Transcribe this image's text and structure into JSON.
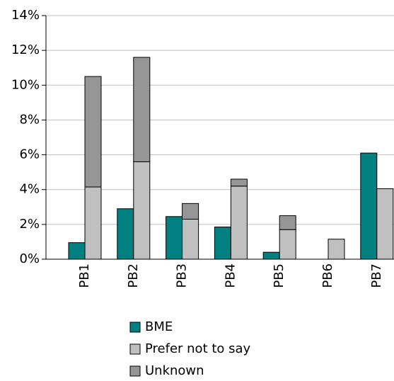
{
  "chart_data": {
    "type": "bar",
    "categories": [
      "PB1",
      "PB2",
      "PB3",
      "PB4",
      "PB5",
      "PB6",
      "PB7"
    ],
    "series": [
      {
        "name": "BME",
        "color": "#008080",
        "values": [
          0.95,
          2.9,
          2.45,
          1.85,
          0.4,
          0,
          6.1
        ]
      },
      {
        "name": "Prefer not to say",
        "color": "#c0c0c0",
        "values": [
          4.15,
          5.6,
          2.3,
          4.2,
          1.7,
          1.15,
          4.05
        ]
      },
      {
        "name": "Unknown",
        "color": "#969696",
        "values": [
          6.35,
          6.0,
          0.9,
          0.4,
          0.8,
          0,
          0
        ]
      }
    ],
    "ylim": [
      0,
      14
    ],
    "yticks": [
      {
        "value": 0,
        "label": "0%"
      },
      {
        "value": 2,
        "label": "2%"
      },
      {
        "value": 4,
        "label": "4%"
      },
      {
        "value": 6,
        "label": "6%"
      },
      {
        "value": 8,
        "label": "8%"
      },
      {
        "value": 10,
        "label": "10%"
      },
      {
        "value": 12,
        "label": "12%"
      },
      {
        "value": 14,
        "label": "14%"
      }
    ],
    "grid": true
  }
}
